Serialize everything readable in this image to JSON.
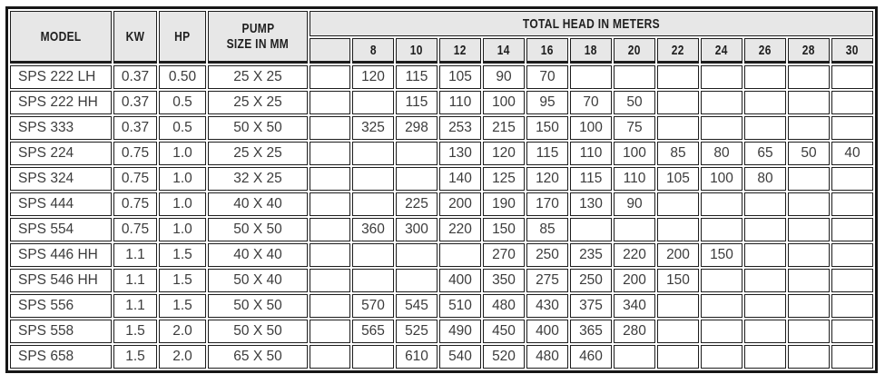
{
  "table": {
    "group_header": "TOTAL HEAD IN METERS",
    "main_columns": [
      {
        "lines": [
          "MODEL"
        ]
      },
      {
        "lines": [
          "KW"
        ]
      },
      {
        "lines": [
          "HP"
        ]
      },
      {
        "lines": [
          "PUMP",
          "SIZE IN MM"
        ]
      }
    ],
    "head_columns": [
      "",
      "8",
      "10",
      "12",
      "14",
      "16",
      "18",
      "20",
      "22",
      "24",
      "26",
      "28",
      "30"
    ],
    "rows": [
      {
        "model": "SPS 222 LH",
        "kw": "0.37",
        "hp": "0.50",
        "size": "25 X 25",
        "heads": [
          "",
          "120",
          "115",
          "105",
          "90",
          "70",
          "",
          "",
          "",
          "",
          "",
          "",
          ""
        ]
      },
      {
        "model": "SPS 222 HH",
        "kw": "0.37",
        "hp": "0.5",
        "size": "25 X 25",
        "heads": [
          "",
          "",
          "115",
          "110",
          "100",
          "95",
          "70",
          "50",
          "",
          "",
          "",
          "",
          ""
        ]
      },
      {
        "model": "SPS 333",
        "kw": "0.37",
        "hp": "0.5",
        "size": "50 X 50",
        "heads": [
          "",
          "325",
          "298",
          "253",
          "215",
          "150",
          "100",
          "75",
          "",
          "",
          "",
          "",
          ""
        ]
      },
      {
        "model": "SPS 224",
        "kw": "0.75",
        "hp": "1.0",
        "size": "25 X 25",
        "heads": [
          "",
          "",
          "",
          "130",
          "120",
          "115",
          "110",
          "100",
          "85",
          "80",
          "65",
          "50",
          "40"
        ]
      },
      {
        "model": "SPS 324",
        "kw": "0.75",
        "hp": "1.0",
        "size": "32 X 25",
        "heads": [
          "",
          "",
          "",
          "140",
          "125",
          "120",
          "115",
          "110",
          "105",
          "100",
          "80",
          "",
          ""
        ]
      },
      {
        "model": "SPS 444",
        "kw": "0.75",
        "hp": "1.0",
        "size": "40 X 40",
        "heads": [
          "",
          "",
          "225",
          "200",
          "190",
          "170",
          "130",
          "90",
          "",
          "",
          "",
          "",
          ""
        ]
      },
      {
        "model": "SPS 554",
        "kw": "0.75",
        "hp": "1.0",
        "size": "50 X 50",
        "heads": [
          "",
          "360",
          "300",
          "220",
          "150",
          "85",
          "",
          "",
          "",
          "",
          "",
          "",
          ""
        ]
      },
      {
        "model": "SPS 446 HH",
        "kw": "1.1",
        "hp": "1.5",
        "size": "40 X 40",
        "heads": [
          "",
          "",
          "",
          "",
          "270",
          "250",
          "235",
          "220",
          "200",
          "150",
          "",
          "",
          ""
        ]
      },
      {
        "model": "SPS 546 HH",
        "kw": "1.1",
        "hp": "1.5",
        "size": "50 X 40",
        "heads": [
          "",
          "",
          "",
          "400",
          "350",
          "275",
          "250",
          "200",
          "150",
          "",
          "",
          "",
          ""
        ]
      },
      {
        "model": "SPS 556",
        "kw": "1.1",
        "hp": "1.5",
        "size": "50 X 50",
        "heads": [
          "",
          "570",
          "545",
          "510",
          "480",
          "430",
          "375",
          "340",
          "",
          "",
          "",
          "",
          ""
        ]
      },
      {
        "model": "SPS 558",
        "kw": "1.5",
        "hp": "2.0",
        "size": "50 X 50",
        "heads": [
          "",
          "565",
          "525",
          "490",
          "450",
          "400",
          "365",
          "280",
          "",
          "",
          "",
          "",
          ""
        ]
      },
      {
        "model": "SPS 658",
        "kw": "1.5",
        "hp": "2.0",
        "size": "65 X 50",
        "heads": [
          "",
          "",
          "610",
          "540",
          "520",
          "480",
          "460",
          "",
          "",
          "",
          "",
          "",
          ""
        ]
      }
    ],
    "colors": {
      "header_bg": "#e7e7e7",
      "border": "#1d1d1d",
      "body_text": "#3c3c3c",
      "header_text": "#1e1e1e"
    }
  }
}
